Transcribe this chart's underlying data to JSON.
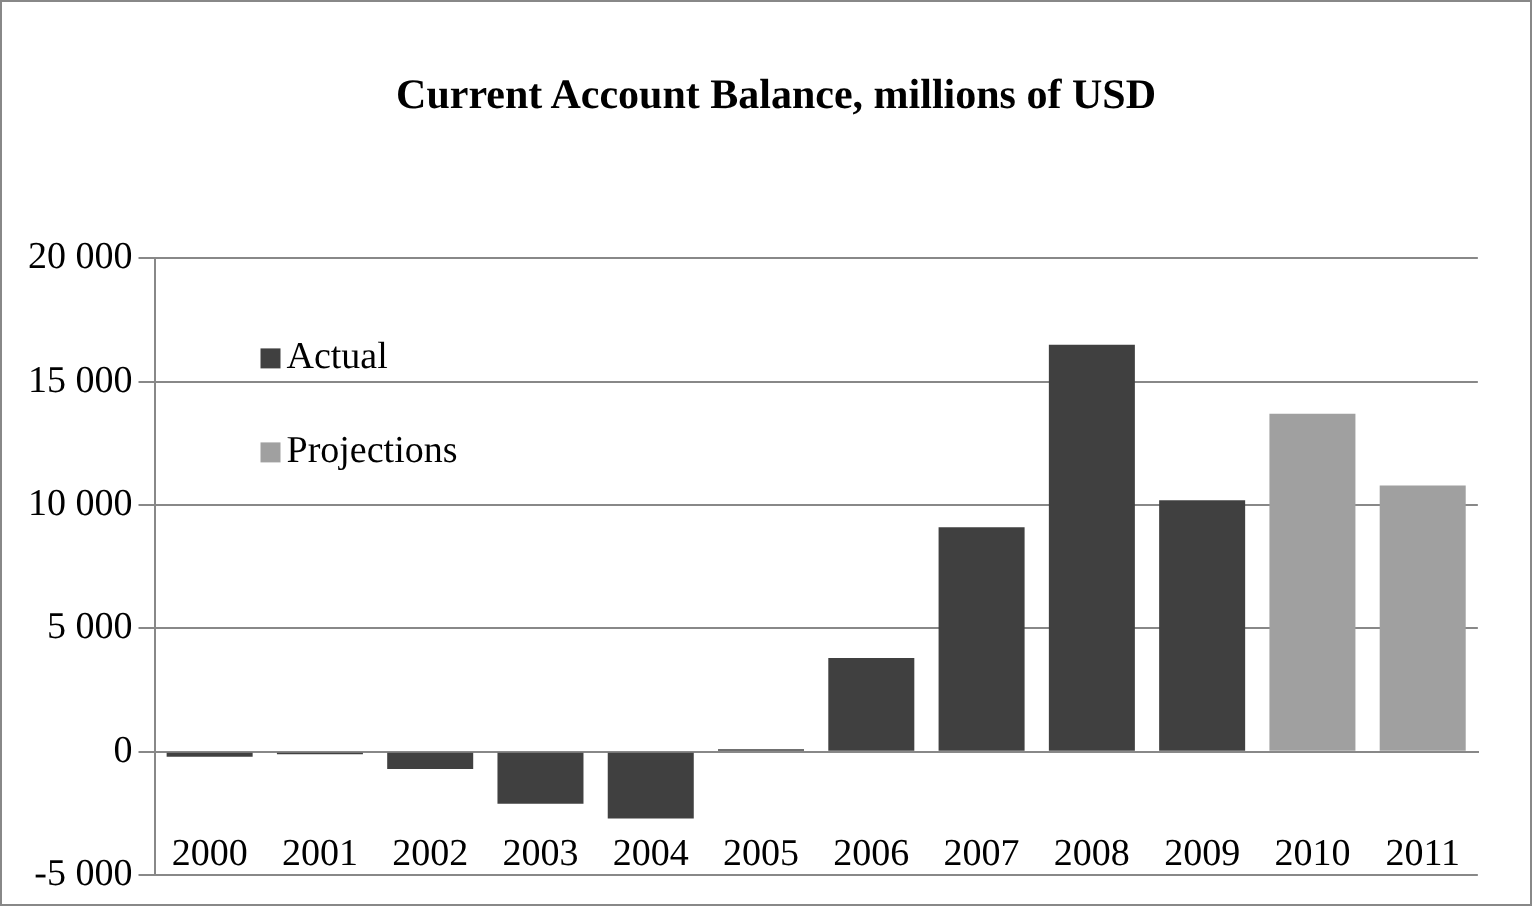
{
  "chart_data": {
    "type": "bar",
    "title": "Current Account Balance, millions of USD",
    "categories": [
      "2000",
      "2001",
      "2002",
      "2003",
      "2004",
      "2005",
      "2006",
      "2007",
      "2008",
      "2009",
      "2010",
      "2011"
    ],
    "series": [
      {
        "name": "Actual",
        "color": "#404040",
        "values": [
          -200,
          -100,
          -700,
          -2100,
          -2700,
          100,
          3800,
          9100,
          16500,
          10200,
          null,
          null
        ]
      },
      {
        "name": "Projections",
        "color": "#a0a0a0",
        "values": [
          null,
          null,
          null,
          null,
          null,
          null,
          null,
          null,
          null,
          null,
          13700,
          10800
        ]
      }
    ],
    "stacked": true,
    "ylim": [
      -5000,
      20000
    ],
    "yticks": [
      {
        "value": -5000,
        "label": "-5 000"
      },
      {
        "value": 0,
        "label": "0"
      },
      {
        "value": 5000,
        "label": "5 000"
      },
      {
        "value": 10000,
        "label": "10 000"
      },
      {
        "value": 15000,
        "label": "15 000"
      },
      {
        "value": 20000,
        "label": "20 000"
      }
    ],
    "grid": "y",
    "legend": "top left"
  }
}
